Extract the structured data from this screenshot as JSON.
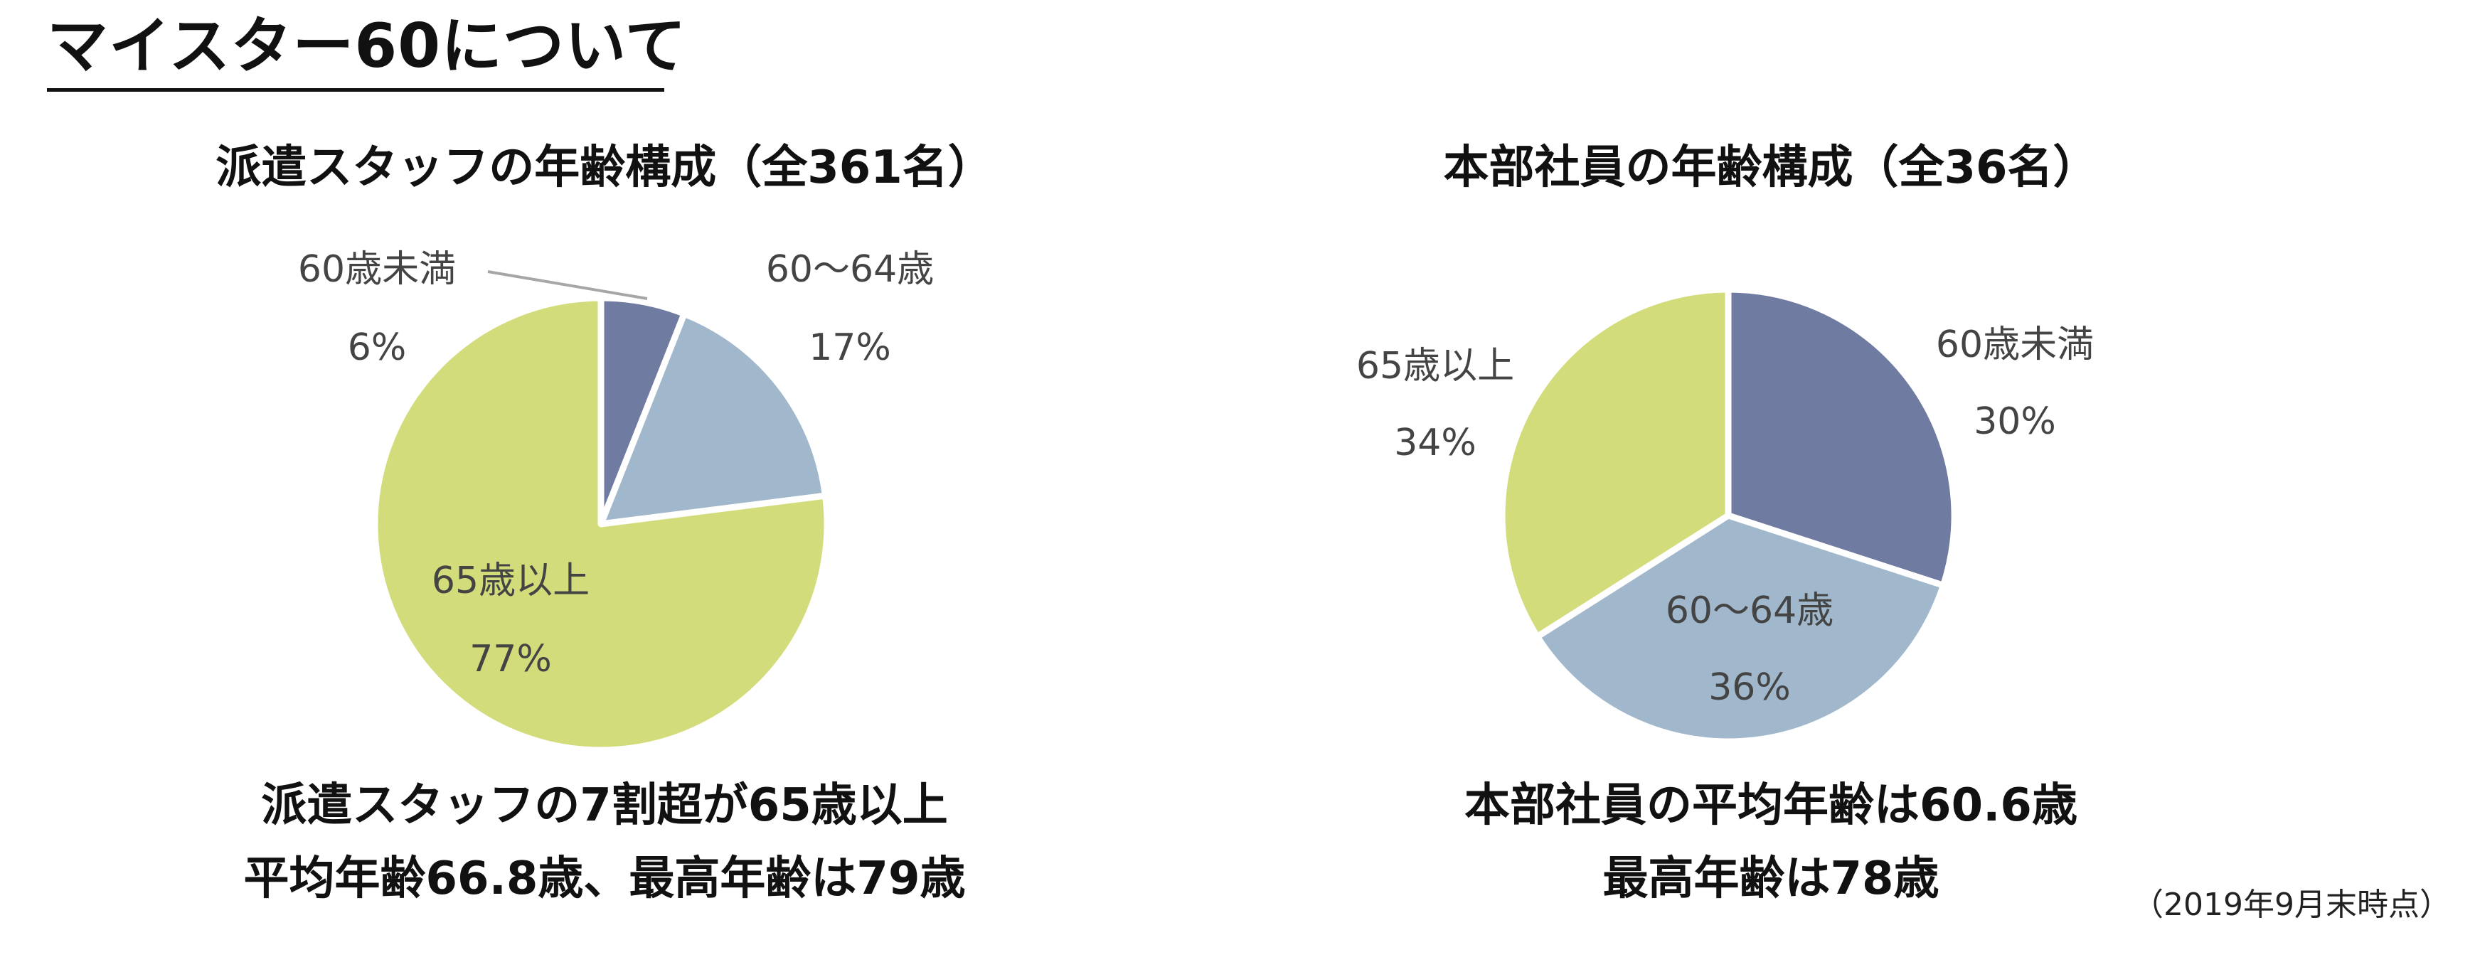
{
  "page": {
    "title": "マイスター60について",
    "footnote": "（2019年9月末時点）"
  },
  "chart_data": [
    {
      "type": "pie",
      "title": "派遣スタッフの年齢構成（全361名）",
      "slices": [
        {
          "label": "60歳未満",
          "value": 6,
          "display": "6%",
          "color": "#707ba1"
        },
        {
          "label": "60～64歳",
          "value": 17,
          "display": "17%",
          "color": "#a1b8cc"
        },
        {
          "label": "65歳以上",
          "value": 77,
          "display": "77%",
          "color": "#d3dc7a"
        }
      ],
      "caption_lines": [
        "派遣スタッフの7割超が65歳以上",
        "平均年齢66.8歳、最高年齢は79歳"
      ]
    },
    {
      "type": "pie",
      "title": "本部社員の年齢構成（全36名）",
      "slices": [
        {
          "label": "60歳未満",
          "value": 30,
          "display": "30%",
          "color": "#707ba1"
        },
        {
          "label": "60～64歳",
          "value": 36,
          "display": "36%",
          "color": "#a1b8cc"
        },
        {
          "label": "65歳以上",
          "value": 34,
          "display": "34%",
          "color": "#d3dc7a"
        }
      ],
      "caption_lines": [
        "本部社員の平均年齢は60.6歳",
        "最高年齢は78歳"
      ]
    }
  ]
}
